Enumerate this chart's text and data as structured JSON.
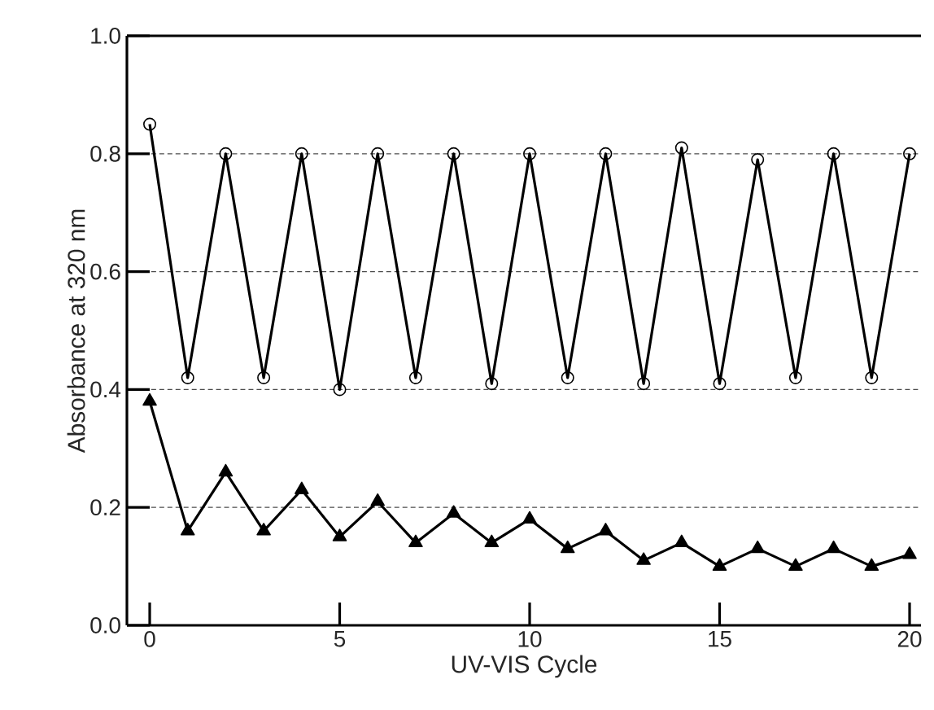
{
  "chart_data": {
    "type": "line",
    "xlabel": "UV-VIS Cycle",
    "ylabel": "Absorbance at 320 nm",
    "x": [
      0,
      1,
      2,
      3,
      4,
      5,
      6,
      7,
      8,
      9,
      10,
      11,
      12,
      13,
      14,
      15,
      16,
      17,
      18,
      19,
      20
    ],
    "series": [
      {
        "color": "#000000",
        "marker": "circle",
        "values": [
          0.85,
          0.42,
          0.8,
          0.42,
          0.8,
          0.4,
          0.8,
          0.42,
          0.8,
          0.41,
          0.8,
          0.42,
          0.8,
          0.41,
          0.81,
          0.41,
          0.79,
          0.42,
          0.8,
          0.42,
          0.8
        ]
      },
      {
        "color": "#000000",
        "marker": "triangle",
        "values": [
          0.38,
          0.16,
          0.26,
          0.16,
          0.23,
          0.15,
          0.21,
          0.14,
          0.19,
          0.14,
          0.18,
          0.13,
          0.16,
          0.11,
          0.14,
          0.1,
          0.13,
          0.1,
          0.13,
          0.1,
          0.12
        ]
      }
    ],
    "xlim": [
      -0.6,
      20.3
    ],
    "ylim": [
      0,
      1.0
    ],
    "xticks": [
      0,
      5,
      10,
      15,
      20
    ],
    "yticks": [
      {
        "value": 0,
        "label": "0.0"
      },
      0.2,
      0.4,
      0.6,
      0.8,
      {
        "value": 1.0,
        "label": "1.0"
      }
    ],
    "grid": "y",
    "line_style": "solid"
  }
}
